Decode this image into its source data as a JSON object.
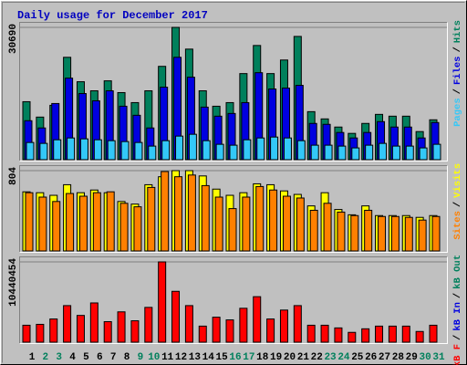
{
  "chart_data": [
    {
      "type": "bar",
      "title": "Daily usage for December 2017",
      "separator": "/",
      "ylim": [
        0,
        30690
      ],
      "yticks": [
        30690
      ],
      "series": [
        {
          "name": "Hits",
          "color": "#00805c",
          "values": [
            13450,
            9880,
            12610,
            23750,
            18080,
            15980,
            18290,
            15560,
            13240,
            15980,
            21650,
            30690,
            25650,
            15980,
            12400,
            13240,
            19970,
            26490,
            19970,
            23120,
            28590,
            11140,
            9460,
            7570,
            6100,
            8410,
            10510,
            10090,
            10090,
            6520,
            9250
          ]
        },
        {
          "name": "Files",
          "color": "#0000e0",
          "values": [
            9040,
            7360,
            13030,
            18920,
            15340,
            13660,
            15980,
            12400,
            10300,
            7360,
            16820,
            23750,
            19130,
            12190,
            10090,
            10720,
            13240,
            20180,
            16400,
            16610,
            17240,
            8410,
            8200,
            6310,
            5040,
            6310,
            8830,
            7570,
            7570,
            5040,
            8620
          ]
        },
        {
          "name": "Pages",
          "color": "#33c8f8",
          "values": [
            3990,
            3780,
            4620,
            5040,
            4830,
            4620,
            4410,
            4200,
            3990,
            3150,
            4410,
            5470,
            5890,
            4410,
            3570,
            3360,
            4620,
            5040,
            5250,
            5040,
            4410,
            3360,
            3360,
            3150,
            2730,
            3360,
            3780,
            3150,
            3150,
            2730,
            3570
          ]
        }
      ]
    },
    {
      "type": "bar",
      "separator": "/",
      "ylim": [
        0,
        804
      ],
      "yticks": [
        804
      ],
      "series": [
        {
          "name": "Visits",
          "color": "#ffff00",
          "values": [
            592,
            583,
            557,
            663,
            583,
            610,
            583,
            495,
            469,
            663,
            743,
            804,
            804,
            751,
            619,
            557,
            583,
            672,
            663,
            601,
            566,
            451,
            583,
            415,
            362,
            451,
            354,
            354,
            354,
            336,
            354
          ]
        },
        {
          "name": "Sites",
          "color": "#ff8000",
          "values": [
            583,
            539,
            495,
            575,
            548,
            583,
            592,
            477,
            442,
            636,
            795,
            743,
            760,
            654,
            539,
            424,
            539,
            645,
            610,
            548,
            530,
            407,
            477,
            389,
            354,
            407,
            345,
            345,
            336,
            309,
            345
          ]
        }
      ]
    },
    {
      "type": "bar",
      "separator": "/",
      "ylim": [
        0,
        10440454
      ],
      "yticks": [
        10440454
      ],
      "categories": [
        "1",
        "2",
        "3",
        "4",
        "5",
        "6",
        "7",
        "8",
        "9",
        "10",
        "11",
        "12",
        "13",
        "14",
        "15",
        "16",
        "17",
        "18",
        "19",
        "20",
        "21",
        "22",
        "23",
        "24",
        "25",
        "26",
        "27",
        "28",
        "29",
        "30",
        "31"
      ],
      "category_colors": [
        "#000000",
        "#00805c",
        "#00805c",
        "#000000",
        "#000000",
        "#000000",
        "#000000",
        "#000000",
        "#00805c",
        "#00805c",
        "#000000",
        "#000000",
        "#000000",
        "#000000",
        "#000000",
        "#00805c",
        "#00805c",
        "#000000",
        "#000000",
        "#000000",
        "#000000",
        "#000000",
        "#00805c",
        "#00805c",
        "#000000",
        "#000000",
        "#000000",
        "#000000",
        "#000000",
        "#00805c",
        "#00805c"
      ],
      "series": [
        {
          "name": "kB F",
          "color": "#ff0000",
          "values": [
            2204100,
            2320100,
            3016100,
            4756200,
            3480200,
            5104200,
            2668100,
            3944200,
            2784100,
            4524200,
            10440454,
            6612300,
            4756200,
            2088100,
            3248100,
            2900100,
            4408200,
            5916300,
            3016100,
            4176200,
            4756200,
            2204100,
            2204100,
            1856100,
            1276100,
            1740100,
            2088100,
            2088100,
            2088100,
            1392100,
            2204100
          ]
        }
      ],
      "legend_only": [
        {
          "name": "kB In",
          "color": "#0000e0"
        },
        {
          "name": "kB Out",
          "color": "#00805c"
        }
      ]
    }
  ]
}
